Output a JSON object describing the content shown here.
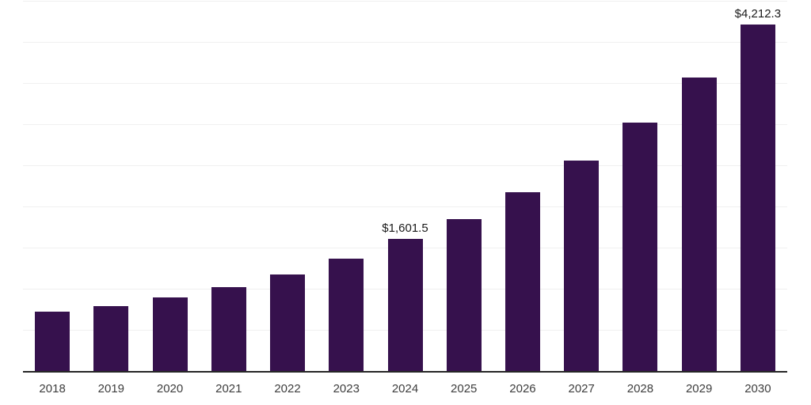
{
  "chart_data": {
    "type": "bar",
    "title": "",
    "xlabel": "",
    "ylabel": "",
    "categories": [
      "2018",
      "2019",
      "2020",
      "2021",
      "2022",
      "2023",
      "2024",
      "2025",
      "2026",
      "2027",
      "2028",
      "2029",
      "2030"
    ],
    "values": [
      720,
      790,
      895,
      1020,
      1175,
      1365,
      1601.5,
      1850,
      2175,
      2560,
      3015,
      3565,
      4212.3
    ],
    "data_labels": {
      "2024": "$1,601.5",
      "2030": "$4,212.3"
    },
    "ylim": [
      0,
      4500
    ],
    "grid_step": 500,
    "grid": true,
    "legend": "none",
    "colors": {
      "bar": "#36114d",
      "axis": "#262626",
      "gridline": "#f0f0f0",
      "tick_label": "#3d3d3d",
      "data_label": "#1a1a1a"
    }
  }
}
